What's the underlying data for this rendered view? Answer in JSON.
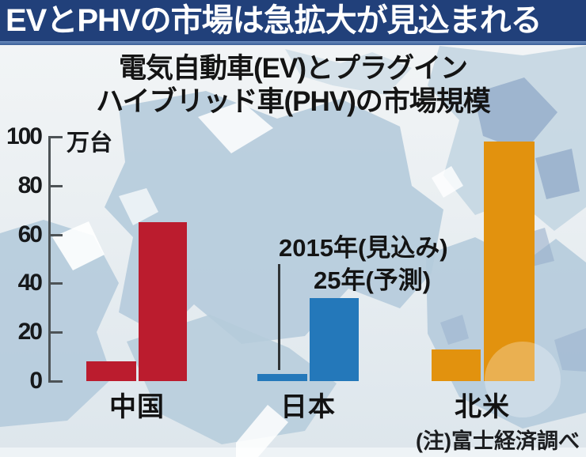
{
  "header": {
    "title": "EVとPHVの市場は急拡大が見込まれる"
  },
  "title": {
    "line1": "電気自動車(EV)とプラグイン",
    "line2": "ハイブリッド車(PHV)の市場規模"
  },
  "chart_data": {
    "type": "bar",
    "title": "電気自動車(EV)とプラグインハイブリッド車(PHV)の市場規模",
    "unit_label": "万台",
    "ylabel": "万台",
    "ylim": [
      0,
      100
    ],
    "yticks": [
      0,
      20,
      40,
      60,
      80,
      100
    ],
    "grid": false,
    "legend_position": "annotation above Japan bars",
    "categories": [
      "中国",
      "日本",
      "北米"
    ],
    "series": [
      {
        "name": "2015年(見込み)",
        "values": [
          8,
          3,
          13
        ]
      },
      {
        "name": "25年(予測)",
        "values": [
          65,
          34,
          98
        ]
      }
    ],
    "colors": [
      "#bb1c2e",
      "#2478ba",
      "#e2920e"
    ],
    "annotation": {
      "line1": "2015年(見込み)",
      "line2": "25年(予測)"
    },
    "note": "(注)富士経済調べ"
  },
  "theme": {
    "header_bg": "#21407a",
    "header_text": "#ffffff",
    "background": "#edf1f4",
    "map_color": "#b5cbdb",
    "axis_color": "#4d5356"
  }
}
